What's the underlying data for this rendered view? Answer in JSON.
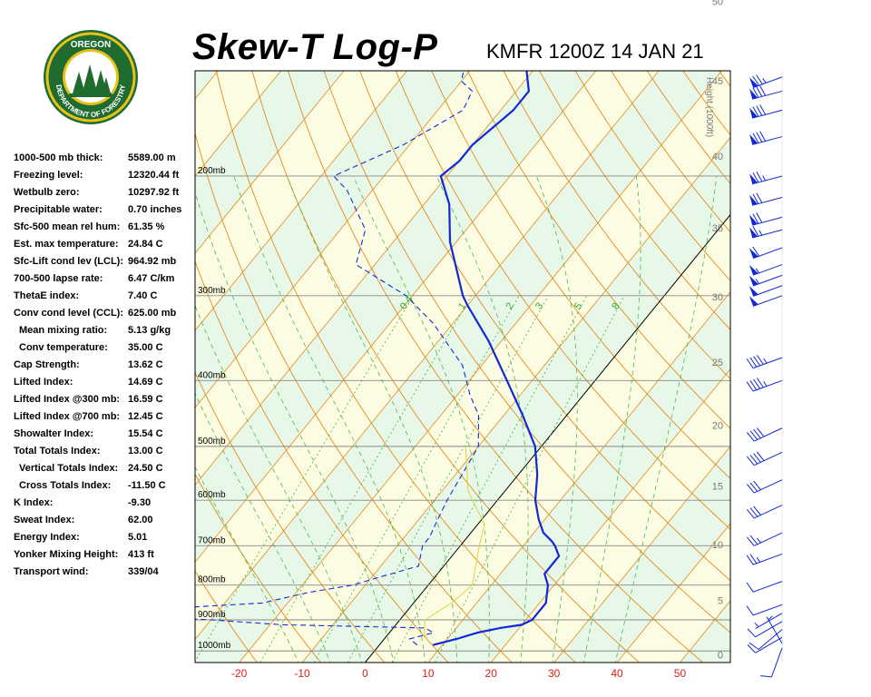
{
  "header": {
    "title": "Skew-T Log-P",
    "station": "KMFR 1200Z 14 JAN 21"
  },
  "logo": {
    "text_top": "OREGON",
    "text_bottom": "DEPARTMENT OF FORESTRY",
    "colors": {
      "ring": "#1f6b30",
      "gold": "#e8c21a",
      "tree": "#1f6b30",
      "sky": "#ffffff"
    }
  },
  "indices": [
    {
      "label": "1000-500 mb thick:",
      "value": "5589.00 m",
      "indent": false
    },
    {
      "label": "Freezing level:",
      "value": "12320.44 ft",
      "indent": false
    },
    {
      "label": "Wetbulb zero:",
      "value": "10297.92 ft",
      "indent": false
    },
    {
      "label": "Precipitable water:",
      "value": "0.70 inches",
      "indent": false
    },
    {
      "label": "Sfc-500 mean rel hum:",
      "value": "61.35 %",
      "indent": false
    },
    {
      "label": "Est. max temperature:",
      "value": "24.84 C",
      "indent": false
    },
    {
      "label": "Sfc-Lift cond lev (LCL):",
      "value": "964.92 mb",
      "indent": false
    },
    {
      "label": "700-500 lapse rate:",
      "value": "6.47 C/km",
      "indent": false
    },
    {
      "label": "ThetaE index:",
      "value": "7.40 C",
      "indent": false
    },
    {
      "label": "Conv cond level (CCL):",
      "value": "625.00 mb",
      "indent": false
    },
    {
      "label": "Mean mixing ratio:",
      "value": "5.13 g/kg",
      "indent": true
    },
    {
      "label": "Conv temperature:",
      "value": "35.00 C",
      "indent": true
    },
    {
      "label": "Cap Strength:",
      "value": "13.62 C",
      "indent": false
    },
    {
      "label": "Lifted Index:",
      "value": "14.69 C",
      "indent": false
    },
    {
      "label": "Lifted Index @300 mb:",
      "value": "16.59 C",
      "indent": false
    },
    {
      "label": "Lifted Index @700 mb:",
      "value": "12.45 C",
      "indent": false
    },
    {
      "label": "Showalter Index:",
      "value": "15.54 C",
      "indent": false
    },
    {
      "label": "Total Totals Index:",
      "value": "13.00 C",
      "indent": false
    },
    {
      "label": "Vertical Totals Index:",
      "value": "24.50 C",
      "indent": true
    },
    {
      "label": "Cross Totals Index:",
      "value": "-11.50 C",
      "indent": true
    },
    {
      "label": "K Index:",
      "value": "-9.30",
      "indent": false
    },
    {
      "label": "Sweat Index:",
      "value": "62.00",
      "indent": false
    },
    {
      "label": "Energy Index:",
      "value": "5.01",
      "indent": false
    },
    {
      "label": "Yonker Mixing Height:",
      "value": "413 ft",
      "indent": false
    },
    {
      "label": "Transport wind:",
      "value": "339/04",
      "indent": false
    }
  ],
  "chart_data": {
    "type": "line",
    "skew_c_per_decade": 88,
    "temperature_axis": {
      "min": -27,
      "max": 58,
      "ticks": [
        -20,
        -10,
        0,
        10,
        20,
        30,
        40,
        50
      ]
    },
    "pressure_axis": {
      "min": 140,
      "max": 1040,
      "ticks": [
        200,
        300,
        400,
        500,
        600,
        700,
        800,
        900,
        1000
      ],
      "tick_labels": [
        "200mb",
        "300mb",
        "400mb",
        "500mb",
        "600mb",
        "700mb",
        "800mb",
        "900mb",
        "1000mb"
      ]
    },
    "height_axis": {
      "label": "Height (1000ft)",
      "ticks": [
        0,
        5,
        10,
        15,
        20,
        25,
        30,
        35,
        40,
        45,
        50
      ]
    },
    "mixing_ratio_labels": [
      "0.4",
      "1",
      "2",
      "3",
      "5",
      "8"
    ],
    "mixing_ratio_values": [
      0.4,
      1,
      2,
      3,
      5,
      8
    ],
    "series": [
      {
        "role": "temperature",
        "color": "#1228d6",
        "style": "solid",
        "points": [
          [
            980,
            8.5
          ],
          [
            960,
            11.5
          ],
          [
            940,
            14
          ],
          [
            925,
            17
          ],
          [
            915,
            20
          ],
          [
            900,
            21
          ],
          [
            850,
            21
          ],
          [
            800,
            19
          ],
          [
            770,
            17
          ],
          [
            745,
            17
          ],
          [
            725,
            17
          ],
          [
            700,
            15
          ],
          [
            690,
            14
          ],
          [
            670,
            11.5
          ],
          [
            640,
            9
          ],
          [
            600,
            6
          ],
          [
            550,
            3
          ],
          [
            500,
            -1
          ],
          [
            450,
            -7
          ],
          [
            400,
            -14
          ],
          [
            350,
            -22
          ],
          [
            310,
            -30
          ],
          [
            300,
            -32
          ],
          [
            250,
            -41
          ],
          [
            220,
            -46
          ],
          [
            200,
            -51
          ],
          [
            190,
            -50
          ],
          [
            180,
            -50
          ],
          [
            160,
            -48
          ],
          [
            150,
            -48
          ],
          [
            140,
            -51
          ]
        ]
      },
      {
        "role": "dewpoint",
        "color": "#1228d6",
        "style": "dashed",
        "points": [
          [
            980,
            6
          ],
          [
            960,
            4
          ],
          [
            940,
            7
          ],
          [
            925,
            5
          ],
          [
            915,
            -18
          ],
          [
            900,
            -30
          ],
          [
            880,
            -52
          ],
          [
            860,
            -33
          ],
          [
            850,
            -24
          ],
          [
            820,
            -18
          ],
          [
            800,
            -12
          ],
          [
            780,
            -9
          ],
          [
            750,
            -4
          ],
          [
            725,
            -5
          ],
          [
            700,
            -6
          ],
          [
            680,
            -6
          ],
          [
            640,
            -7
          ],
          [
            600,
            -8
          ],
          [
            500,
            -10
          ],
          [
            450,
            -14
          ],
          [
            420,
            -18
          ],
          [
            380,
            -23
          ],
          [
            330,
            -33
          ],
          [
            300,
            -41
          ],
          [
            270,
            -53
          ],
          [
            240,
            -56
          ],
          [
            210,
            -64
          ],
          [
            200,
            -68
          ],
          [
            180,
            -61
          ],
          [
            160,
            -56
          ],
          [
            150,
            -57
          ],
          [
            145,
            -60
          ],
          [
            140,
            -61
          ]
        ]
      },
      {
        "role": "parcel",
        "color": "#e0d23a",
        "style": "solid",
        "points": [
          [
            965,
            7
          ],
          [
            940,
            5.5
          ],
          [
            900,
            4
          ],
          [
            850,
            6
          ],
          [
            800,
            7
          ],
          [
            700,
            3
          ],
          [
            650,
            1
          ],
          [
            600,
            -4
          ],
          [
            580,
            -6
          ],
          [
            500,
            -12
          ]
        ]
      }
    ],
    "wind_barbs": [
      {
        "p": 990,
        "dir": 200,
        "spd": 10
      },
      {
        "p": 975,
        "dir": 330,
        "spd": 5
      },
      {
        "p": 955,
        "dir": 240,
        "spd": 10
      },
      {
        "p": 930,
        "dir": 230,
        "spd": 10
      },
      {
        "p": 905,
        "dir": 240,
        "spd": 10
      },
      {
        "p": 880,
        "dir": 240,
        "spd": 5
      },
      {
        "p": 855,
        "dir": 250,
        "spd": 10
      },
      {
        "p": 790,
        "dir": 250,
        "spd": 10
      },
      {
        "p": 720,
        "dir": 250,
        "spd": 25
      },
      {
        "p": 670,
        "dir": 245,
        "spd": 25
      },
      {
        "p": 610,
        "dir": 245,
        "spd": 30
      },
      {
        "p": 560,
        "dir": 245,
        "spd": 30
      },
      {
        "p": 510,
        "dir": 245,
        "spd": 40
      },
      {
        "p": 470,
        "dir": 245,
        "spd": 40
      },
      {
        "p": 400,
        "dir": 250,
        "spd": 45
      },
      {
        "p": 370,
        "dir": 250,
        "spd": 45
      },
      {
        "p": 300,
        "dir": 250,
        "spd": 50
      },
      {
        "p": 290,
        "dir": 250,
        "spd": 50
      },
      {
        "p": 280,
        "dir": 250,
        "spd": 55
      },
      {
        "p": 270,
        "dir": 250,
        "spd": 55
      },
      {
        "p": 255,
        "dir": 250,
        "spd": 60
      },
      {
        "p": 240,
        "dir": 255,
        "spd": 65
      },
      {
        "p": 230,
        "dir": 255,
        "spd": 70
      },
      {
        "p": 215,
        "dir": 255,
        "spd": 70
      },
      {
        "p": 200,
        "dir": 255,
        "spd": 75
      },
      {
        "p": 175,
        "dir": 255,
        "spd": 80
      },
      {
        "p": 160,
        "dir": 255,
        "spd": 80
      },
      {
        "p": 150,
        "dir": 255,
        "spd": 80
      },
      {
        "p": 143,
        "dir": 250,
        "spd": 75
      }
    ],
    "colors": {
      "band_green": "#e8f8e8",
      "band_yellow": "#fcfce2",
      "isotherm": "#e38a1c",
      "dry_adiabat": "#e38a1c",
      "moist_adiabat": "#4cb84c",
      "mixing_ratio": "#2aa82a",
      "ptt": "#e01a1a",
      "isobar": "#888888",
      "zero_isotherm": "#000000",
      "barb": "#1228d6",
      "axis_red": "#e01a1a"
    }
  }
}
